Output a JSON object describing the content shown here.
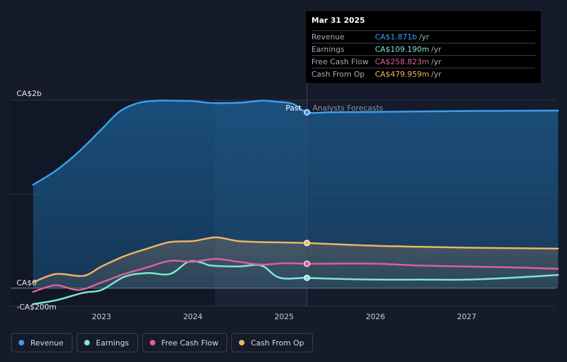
{
  "tooltip": {
    "date": "Mar 31 2025",
    "rows": [
      {
        "name": "Revenue",
        "value": "CA$1.871b",
        "unit": "/yr",
        "color": "#3aa0f0"
      },
      {
        "name": "Earnings",
        "value": "CA$109.190m",
        "unit": "/yr",
        "color": "#7ee8d4"
      },
      {
        "name": "Free Cash Flow",
        "value": "CA$258.823m",
        "unit": "/yr",
        "color": "#e0609a"
      },
      {
        "name": "Cash From Op",
        "value": "CA$479.959m",
        "unit": "/yr",
        "color": "#f0b560"
      }
    ]
  },
  "labels": {
    "past": "Past",
    "forecast": "Analysts Forecasts"
  },
  "legend": [
    {
      "label": "Revenue",
      "color": "#3aa0f0"
    },
    {
      "label": "Earnings",
      "color": "#7ee8d4"
    },
    {
      "label": "Free Cash Flow",
      "color": "#e0609a"
    },
    {
      "label": "Cash From Op",
      "color": "#f0b560"
    }
  ],
  "chart_data": {
    "type": "line",
    "y_unit": "CA$ millions",
    "ylim": [
      -200,
      2000
    ],
    "y_tick_labels": [
      {
        "value": 2000,
        "label": "CA$2b"
      },
      {
        "value": 0,
        "label": "CA$0"
      },
      {
        "value": -200,
        "label": "-CA$200m"
      }
    ],
    "xlim": [
      2022.25,
      2028.0
    ],
    "x_ticks": [
      2023,
      2024,
      2025,
      2026,
      2027
    ],
    "past_end": 2025.25,
    "grid": true,
    "legend_placement": "bottom-left",
    "series": [
      {
        "name": "Revenue",
        "color": "#3aa0f0",
        "points": [
          [
            2022.25,
            1100
          ],
          [
            2022.5,
            1250
          ],
          [
            2022.75,
            1450
          ],
          [
            2023.0,
            1690
          ],
          [
            2023.2,
            1880
          ],
          [
            2023.4,
            1970
          ],
          [
            2023.6,
            1995
          ],
          [
            2023.8,
            1995
          ],
          [
            2024.0,
            1990
          ],
          [
            2024.2,
            1970
          ],
          [
            2024.4,
            1970
          ],
          [
            2024.55,
            1975
          ],
          [
            2024.75,
            1995
          ],
          [
            2024.9,
            1985
          ],
          [
            2025.1,
            1960
          ],
          [
            2025.25,
            1871
          ],
          [
            2025.5,
            1871
          ],
          [
            2026.0,
            1875
          ],
          [
            2026.5,
            1880
          ],
          [
            2027.0,
            1885
          ],
          [
            2027.5,
            1887
          ],
          [
            2028.0,
            1890
          ]
        ]
      },
      {
        "name": "Earnings",
        "color": "#7ee8d4",
        "points": [
          [
            2022.25,
            -170
          ],
          [
            2022.5,
            -130
          ],
          [
            2022.8,
            -50
          ],
          [
            2023.0,
            -20
          ],
          [
            2023.25,
            120
          ],
          [
            2023.5,
            160
          ],
          [
            2023.75,
            150
          ],
          [
            2023.95,
            280
          ],
          [
            2024.1,
            270
          ],
          [
            2024.2,
            240
          ],
          [
            2024.5,
            230
          ],
          [
            2024.75,
            240
          ],
          [
            2024.95,
            110
          ],
          [
            2025.25,
            109
          ],
          [
            2025.5,
            100
          ],
          [
            2026.0,
            90
          ],
          [
            2026.5,
            90
          ],
          [
            2027.0,
            90
          ],
          [
            2027.5,
            110
          ],
          [
            2028.0,
            140
          ]
        ]
      },
      {
        "name": "Free Cash Flow",
        "color": "#e0609a",
        "points": [
          [
            2022.25,
            -40
          ],
          [
            2022.5,
            30
          ],
          [
            2022.75,
            -20
          ],
          [
            2023.0,
            60
          ],
          [
            2023.25,
            150
          ],
          [
            2023.5,
            220
          ],
          [
            2023.75,
            290
          ],
          [
            2024.0,
            280
          ],
          [
            2024.25,
            310
          ],
          [
            2024.5,
            280
          ],
          [
            2024.75,
            250
          ],
          [
            2025.0,
            265
          ],
          [
            2025.25,
            259
          ],
          [
            2025.5,
            260
          ],
          [
            2026.0,
            260
          ],
          [
            2026.5,
            240
          ],
          [
            2027.0,
            230
          ],
          [
            2027.5,
            220
          ],
          [
            2028.0,
            205
          ]
        ]
      },
      {
        "name": "Cash From Op",
        "color": "#f0b560",
        "points": [
          [
            2022.25,
            60
          ],
          [
            2022.5,
            150
          ],
          [
            2022.8,
            130
          ],
          [
            2023.0,
            230
          ],
          [
            2023.25,
            340
          ],
          [
            2023.5,
            420
          ],
          [
            2023.75,
            490
          ],
          [
            2024.0,
            500
          ],
          [
            2024.25,
            540
          ],
          [
            2024.5,
            500
          ],
          [
            2024.75,
            490
          ],
          [
            2025.0,
            485
          ],
          [
            2025.25,
            480
          ],
          [
            2025.5,
            470
          ],
          [
            2026.0,
            450
          ],
          [
            2026.5,
            440
          ],
          [
            2027.0,
            430
          ],
          [
            2027.5,
            425
          ],
          [
            2028.0,
            420
          ]
        ]
      }
    ]
  }
}
